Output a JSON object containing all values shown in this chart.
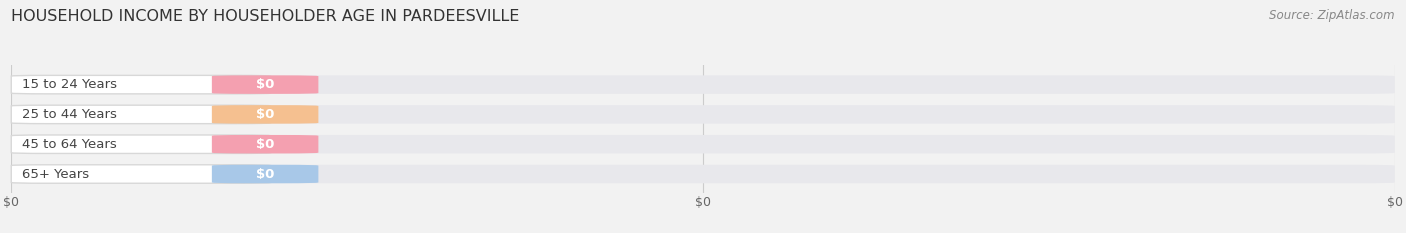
{
  "title": "HOUSEHOLD INCOME BY HOUSEHOLDER AGE IN PARDEESVILLE",
  "source": "Source: ZipAtlas.com",
  "categories": [
    "15 to 24 Years",
    "25 to 44 Years",
    "45 to 64 Years",
    "65+ Years"
  ],
  "values": [
    0,
    0,
    0,
    0
  ],
  "bar_colors": [
    "#f4a0b0",
    "#f5c090",
    "#f4a0b0",
    "#a8c8e8"
  ],
  "background_color": "#f2f2f2",
  "bar_bg_color": "#e8e8ec",
  "title_fontsize": 11.5,
  "source_fontsize": 8.5,
  "label_fontsize": 9.5,
  "tick_fontsize": 9,
  "figsize": [
    14.06,
    2.33
  ],
  "dpi": 100,
  "xticks": [
    0,
    0.5,
    1.0
  ],
  "xtick_labels": [
    "$0",
    "$0",
    "$0"
  ]
}
